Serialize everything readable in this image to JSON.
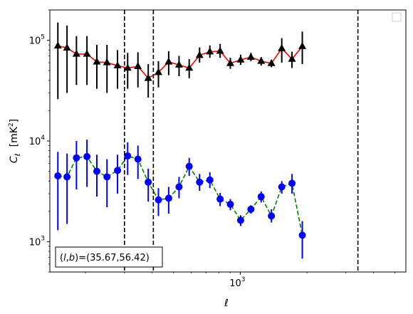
{
  "chart_data": {
    "type": "line",
    "xlabel": "ℓ",
    "ylabel_main": "C",
    "ylabel_sub": "ℓ",
    "ylabel_unit": "[mK",
    "ylabel_unit_sup": "2",
    "ylabel_unit_close": "]",
    "xscale": "log",
    "yscale": "log",
    "xlim": [
      138,
      5600
    ],
    "ylim": [
      500,
      200000
    ],
    "x_ticks": [
      {
        "value": 1000,
        "label_base": "10",
        "label_exp": "3"
      }
    ],
    "y_ticks": [
      {
        "value": 1000,
        "label_base": "10",
        "label_exp": "3"
      },
      {
        "value": 10000,
        "label_base": "10",
        "label_exp": "4"
      },
      {
        "value": 100000,
        "label_base": "10",
        "label_exp": "5"
      }
    ],
    "grid": false,
    "legend_position": "top-right",
    "vertical_lines": [
      300,
      405,
      3400
    ],
    "annotation": "(l, b)=(35.67,56.42)",
    "annotation_parts": {
      "open": "(",
      "l": "l",
      "comma": ",",
      "b": "b",
      "rest": ")=(35.67,56.42)"
    },
    "series": [
      {
        "line_color": "#ff0000",
        "marker_color": "#000000",
        "error_color": "#000000",
        "marker": "triangle",
        "line_style": "solid",
        "points": [
          {
            "x": 150,
            "y": 88000,
            "lo": 26000,
            "hi": 150000
          },
          {
            "x": 165,
            "y": 84000,
            "lo": 30000,
            "hi": 140000
          },
          {
            "x": 182,
            "y": 73000,
            "lo": 36000,
            "hi": 110000
          },
          {
            "x": 203,
            "y": 73000,
            "lo": 36000,
            "hi": 110000
          },
          {
            "x": 225,
            "y": 61000,
            "lo": 33000,
            "hi": 90000
          },
          {
            "x": 250,
            "y": 60000,
            "lo": 30000,
            "hi": 90000
          },
          {
            "x": 279,
            "y": 56000,
            "lo": 33000,
            "hi": 80000
          },
          {
            "x": 310,
            "y": 53000,
            "lo": 33000,
            "hi": 75000
          },
          {
            "x": 345,
            "y": 55000,
            "lo": 34000,
            "hi": 76000
          },
          {
            "x": 384,
            "y": 42000,
            "lo": 27000,
            "hi": 58000
          },
          {
            "x": 427,
            "y": 48000,
            "lo": 34000,
            "hi": 62000
          },
          {
            "x": 475,
            "y": 61000,
            "lo": 45000,
            "hi": 78000
          },
          {
            "x": 529,
            "y": 57000,
            "lo": 44000,
            "hi": 70000
          },
          {
            "x": 588,
            "y": 53000,
            "lo": 42000,
            "hi": 65000
          },
          {
            "x": 655,
            "y": 71000,
            "lo": 60000,
            "hi": 85000
          },
          {
            "x": 729,
            "y": 77000,
            "lo": 67000,
            "hi": 89000
          },
          {
            "x": 811,
            "y": 78000,
            "lo": 67000,
            "hi": 92000
          },
          {
            "x": 902,
            "y": 59000,
            "lo": 52000,
            "hi": 67000
          },
          {
            "x": 1004,
            "y": 64000,
            "lo": 57000,
            "hi": 72000
          },
          {
            "x": 1117,
            "y": 68000,
            "lo": 62000,
            "hi": 75000
          },
          {
            "x": 1243,
            "y": 62000,
            "lo": 56000,
            "hi": 68000
          },
          {
            "x": 1383,
            "y": 59000,
            "lo": 54000,
            "hi": 64000
          },
          {
            "x": 1540,
            "y": 83000,
            "lo": 60000,
            "hi": 105000
          },
          {
            "x": 1713,
            "y": 65000,
            "lo": 53000,
            "hi": 77000
          },
          {
            "x": 1907,
            "y": 87000,
            "lo": 58000,
            "hi": 122000
          }
        ]
      },
      {
        "line_color": "#008000",
        "marker_color": "#0000ff",
        "error_color": "#0000ff",
        "marker": "circle",
        "line_style": "dashed",
        "points": [
          {
            "x": 150,
            "y": 4500,
            "lo": 1300,
            "hi": 7800
          },
          {
            "x": 165,
            "y": 4400,
            "lo": 1500,
            "hi": 7500
          },
          {
            "x": 182,
            "y": 6800,
            "lo": 3300,
            "hi": 10000
          },
          {
            "x": 203,
            "y": 7000,
            "lo": 3500,
            "hi": 10300
          },
          {
            "x": 225,
            "y": 5000,
            "lo": 2800,
            "hi": 7300
          },
          {
            "x": 250,
            "y": 4400,
            "lo": 2200,
            "hi": 6600
          },
          {
            "x": 279,
            "y": 5100,
            "lo": 3000,
            "hi": 7300
          },
          {
            "x": 310,
            "y": 7100,
            "lo": 4600,
            "hi": 9700
          },
          {
            "x": 345,
            "y": 6600,
            "lo": 4200,
            "hi": 9000
          },
          {
            "x": 384,
            "y": 3900,
            "lo": 2500,
            "hi": 5300
          },
          {
            "x": 427,
            "y": 2600,
            "lo": 1800,
            "hi": 3400
          },
          {
            "x": 475,
            "y": 2700,
            "lo": 1900,
            "hi": 3500
          },
          {
            "x": 529,
            "y": 3500,
            "lo": 2700,
            "hi": 4400
          },
          {
            "x": 588,
            "y": 5600,
            "lo": 4500,
            "hi": 6800
          },
          {
            "x": 655,
            "y": 3900,
            "lo": 3200,
            "hi": 4700
          },
          {
            "x": 729,
            "y": 4100,
            "lo": 3400,
            "hi": 4900
          },
          {
            "x": 811,
            "y": 2650,
            "lo": 2250,
            "hi": 3050
          },
          {
            "x": 902,
            "y": 2350,
            "lo": 2050,
            "hi": 2650
          },
          {
            "x": 1004,
            "y": 1630,
            "lo": 1430,
            "hi": 1830
          },
          {
            "x": 1117,
            "y": 2100,
            "lo": 1900,
            "hi": 2300
          },
          {
            "x": 1243,
            "y": 2800,
            "lo": 2450,
            "hi": 3150
          },
          {
            "x": 1383,
            "y": 1800,
            "lo": 1550,
            "hi": 2100
          },
          {
            "x": 1540,
            "y": 3500,
            "lo": 3000,
            "hi": 4000
          },
          {
            "x": 1713,
            "y": 3800,
            "lo": 3000,
            "hi": 4700
          },
          {
            "x": 1907,
            "y": 1160,
            "lo": 680,
            "hi": 1600
          }
        ]
      }
    ]
  }
}
